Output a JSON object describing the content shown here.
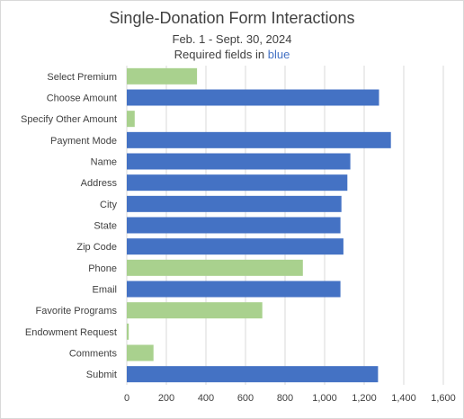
{
  "chart_data": {
    "type": "bar",
    "orientation": "horizontal",
    "title": "Single-Donation Form Interactions",
    "subtitle_line1": "Feb. 1 - Sept. 30, 2024",
    "subtitle_prefix": "Required fields in ",
    "subtitle_highlight": "blue",
    "categories": [
      "Select Premium",
      "Choose Amount",
      "Specify Other Amount",
      "Payment Mode",
      "Name",
      "Address",
      "City",
      "State",
      "Zip Code",
      "Phone",
      "Email",
      "Favorite Programs",
      "Endowment Request",
      "Comments",
      "Submit"
    ],
    "values": [
      355,
      1275,
      40,
      1335,
      1130,
      1115,
      1085,
      1080,
      1095,
      890,
      1080,
      685,
      10,
      135,
      1270
    ],
    "required": [
      false,
      true,
      false,
      true,
      true,
      true,
      true,
      true,
      true,
      false,
      true,
      false,
      false,
      false,
      true
    ],
    "xlim": [
      0,
      1600
    ],
    "xticks": [
      "0",
      "200",
      "400",
      "600",
      "800",
      "1,000",
      "1,200",
      "1,400",
      "1,600"
    ],
    "grid": true,
    "colors": {
      "required": "#4472C4",
      "optional": "#A9D18E",
      "grid": "#d9d9d9"
    }
  }
}
